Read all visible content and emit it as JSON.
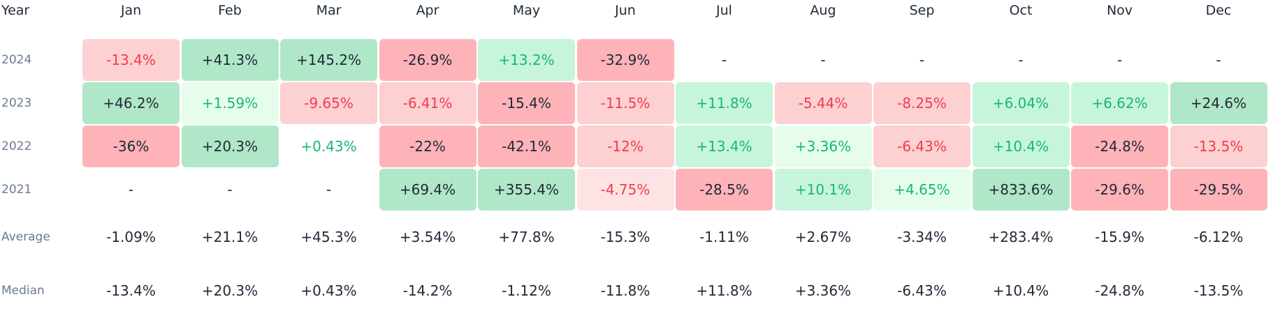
{
  "header": {
    "year_label": "Year",
    "months": [
      "Jan",
      "Feb",
      "Mar",
      "Apr",
      "May",
      "Jun",
      "Jul",
      "Aug",
      "Sep",
      "Oct",
      "Nov",
      "Dec"
    ]
  },
  "colors": {
    "neg_strong": "#fdb3b8",
    "neg_medium": "#fdd0d2",
    "neg_light": "#fee3e4",
    "pos_strong": "#b0e7c8",
    "pos_medium": "#c7f5dc",
    "pos_light": "#e6fdee",
    "text_dark": "#1f2937",
    "text_red": "#ef3d4a",
    "text_green": "#16b870",
    "row_label": "#6b7a92"
  },
  "rows": [
    {
      "year": "2024",
      "cells": [
        {
          "text": "-13.4%",
          "tone": "neg_medium",
          "ink": "red"
        },
        {
          "text": "+41.3%",
          "tone": "pos_strong",
          "ink": "dark"
        },
        {
          "text": "+145.2%",
          "tone": "pos_strong",
          "ink": "dark"
        },
        {
          "text": "-26.9%",
          "tone": "neg_strong",
          "ink": "dark"
        },
        {
          "text": "+13.2%",
          "tone": "pos_medium",
          "ink": "green"
        },
        {
          "text": "-32.9%",
          "tone": "neg_strong",
          "ink": "dark"
        },
        {
          "text": "-",
          "tone": "none",
          "ink": "dark"
        },
        {
          "text": "-",
          "tone": "none",
          "ink": "dark"
        },
        {
          "text": "-",
          "tone": "none",
          "ink": "dark"
        },
        {
          "text": "-",
          "tone": "none",
          "ink": "dark"
        },
        {
          "text": "-",
          "tone": "none",
          "ink": "dark"
        },
        {
          "text": "-",
          "tone": "none",
          "ink": "dark"
        }
      ]
    },
    {
      "year": "2023",
      "cells": [
        {
          "text": "+46.2%",
          "tone": "pos_strong",
          "ink": "dark"
        },
        {
          "text": "+1.59%",
          "tone": "pos_light",
          "ink": "green"
        },
        {
          "text": "-9.65%",
          "tone": "neg_medium",
          "ink": "red"
        },
        {
          "text": "-6.41%",
          "tone": "neg_medium",
          "ink": "red"
        },
        {
          "text": "-15.4%",
          "tone": "neg_strong",
          "ink": "dark"
        },
        {
          "text": "-11.5%",
          "tone": "neg_medium",
          "ink": "red"
        },
        {
          "text": "+11.8%",
          "tone": "pos_medium",
          "ink": "green"
        },
        {
          "text": "-5.44%",
          "tone": "neg_medium",
          "ink": "red"
        },
        {
          "text": "-8.25%",
          "tone": "neg_medium",
          "ink": "red"
        },
        {
          "text": "+6.04%",
          "tone": "pos_medium",
          "ink": "green"
        },
        {
          "text": "+6.62%",
          "tone": "pos_medium",
          "ink": "green"
        },
        {
          "text": "+24.6%",
          "tone": "pos_strong",
          "ink": "dark"
        }
      ]
    },
    {
      "year": "2022",
      "cells": [
        {
          "text": "-36%",
          "tone": "neg_strong",
          "ink": "dark"
        },
        {
          "text": "+20.3%",
          "tone": "pos_strong",
          "ink": "dark"
        },
        {
          "text": "+0.43%",
          "tone": "none",
          "ink": "green"
        },
        {
          "text": "-22%",
          "tone": "neg_strong",
          "ink": "dark"
        },
        {
          "text": "-42.1%",
          "tone": "neg_strong",
          "ink": "dark"
        },
        {
          "text": "-12%",
          "tone": "neg_medium",
          "ink": "red"
        },
        {
          "text": "+13.4%",
          "tone": "pos_medium",
          "ink": "green"
        },
        {
          "text": "+3.36%",
          "tone": "pos_light",
          "ink": "green"
        },
        {
          "text": "-6.43%",
          "tone": "neg_medium",
          "ink": "red"
        },
        {
          "text": "+10.4%",
          "tone": "pos_medium",
          "ink": "green"
        },
        {
          "text": "-24.8%",
          "tone": "neg_strong",
          "ink": "dark"
        },
        {
          "text": "-13.5%",
          "tone": "neg_medium",
          "ink": "red"
        }
      ]
    },
    {
      "year": "2021",
      "cells": [
        {
          "text": "-",
          "tone": "none",
          "ink": "dark"
        },
        {
          "text": "-",
          "tone": "none",
          "ink": "dark"
        },
        {
          "text": "-",
          "tone": "none",
          "ink": "dark"
        },
        {
          "text": "+69.4%",
          "tone": "pos_strong",
          "ink": "dark"
        },
        {
          "text": "+355.4%",
          "tone": "pos_strong",
          "ink": "dark"
        },
        {
          "text": "-4.75%",
          "tone": "neg_light",
          "ink": "red"
        },
        {
          "text": "-28.5%",
          "tone": "neg_strong",
          "ink": "dark"
        },
        {
          "text": "+10.1%",
          "tone": "pos_medium",
          "ink": "green"
        },
        {
          "text": "+4.65%",
          "tone": "pos_light",
          "ink": "green"
        },
        {
          "text": "+833.6%",
          "tone": "pos_strong",
          "ink": "dark"
        },
        {
          "text": "-29.6%",
          "tone": "neg_strong",
          "ink": "dark"
        },
        {
          "text": "-29.5%",
          "tone": "neg_strong",
          "ink": "dark"
        }
      ]
    }
  ],
  "average": {
    "label": "Average",
    "values": [
      "-1.09%",
      "+21.1%",
      "+45.3%",
      "+3.54%",
      "+77.8%",
      "-15.3%",
      "-1.11%",
      "+2.67%",
      "-3.34%",
      "+283.4%",
      "-15.9%",
      "-6.12%"
    ]
  },
  "median": {
    "label": "Median",
    "values": [
      "-13.4%",
      "+20.3%",
      "+0.43%",
      "-14.2%",
      "-1.12%",
      "-11.8%",
      "+11.8%",
      "+3.36%",
      "-6.43%",
      "+10.4%",
      "-24.8%",
      "-13.5%"
    ]
  }
}
